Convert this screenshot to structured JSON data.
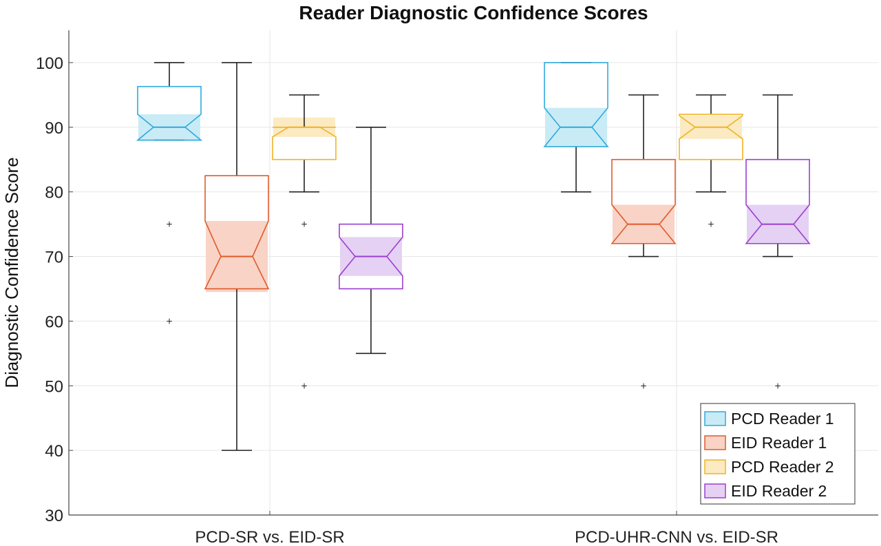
{
  "chart_data": {
    "type": "boxplot",
    "title": "Reader Diagnostic Confidence Scores",
    "xlabel": "",
    "ylabel": "Diagnostic Confidence Score",
    "ylim": [
      30,
      105
    ],
    "yticks": [
      30,
      40,
      50,
      60,
      70,
      80,
      90,
      100
    ],
    "grid": true,
    "legend_position": "bottom-right",
    "categories": [
      "PCD-SR vs. EID-SR",
      "PCD-UHR-CNN vs. EID-SR"
    ],
    "series": [
      {
        "name": "PCD Reader 1",
        "color": "#2eaadc",
        "fill": "#c9ebf6",
        "boxes": [
          {
            "whisker_low": 88,
            "q1": 88,
            "median": 90,
            "q3": 96.3,
            "whisker_high": 100,
            "notch_low": 88,
            "notch_high": 92,
            "outliers": [
              75,
              60
            ]
          },
          {
            "whisker_low": 80,
            "q1": 87,
            "median": 90,
            "q3": 100,
            "whisker_high": 100,
            "notch_low": 87,
            "notch_high": 93,
            "outliers": []
          }
        ]
      },
      {
        "name": "EID Reader 1",
        "color": "#e05a2b",
        "fill": "#f8d3c6",
        "boxes": [
          {
            "whisker_low": 40,
            "q1": 65,
            "median": 70,
            "q3": 82.5,
            "whisker_high": 100,
            "notch_low": 64.5,
            "notch_high": 75.5,
            "outliers": []
          },
          {
            "whisker_low": 70,
            "q1": 72,
            "median": 75,
            "q3": 85,
            "whisker_high": 95,
            "notch_low": 72,
            "notch_high": 78,
            "outliers": [
              50
            ]
          }
        ]
      },
      {
        "name": "PCD Reader 2",
        "color": "#f0b323",
        "fill": "#fbeac2",
        "boxes": [
          {
            "whisker_low": 80,
            "q1": 85,
            "median": 90,
            "q3": 90,
            "whisker_high": 95,
            "notch_low": 88.5,
            "notch_high": 91.5,
            "outliers": [
              75,
              50
            ]
          },
          {
            "whisker_low": 80,
            "q1": 85,
            "median": 90,
            "q3": 92,
            "whisker_high": 95,
            "notch_low": 88.2,
            "notch_high": 91.8,
            "outliers": [
              75
            ]
          }
        ]
      },
      {
        "name": "EID Reader 2",
        "color": "#9b3fcf",
        "fill": "#e5d1f3",
        "boxes": [
          {
            "whisker_low": 55,
            "q1": 65,
            "median": 70,
            "q3": 75,
            "whisker_high": 90,
            "notch_low": 67,
            "notch_high": 73,
            "outliers": []
          },
          {
            "whisker_low": 70,
            "q1": 72,
            "median": 75,
            "q3": 85,
            "whisker_high": 95,
            "notch_low": 72,
            "notch_high": 78,
            "outliers": [
              50
            ]
          }
        ]
      }
    ]
  }
}
